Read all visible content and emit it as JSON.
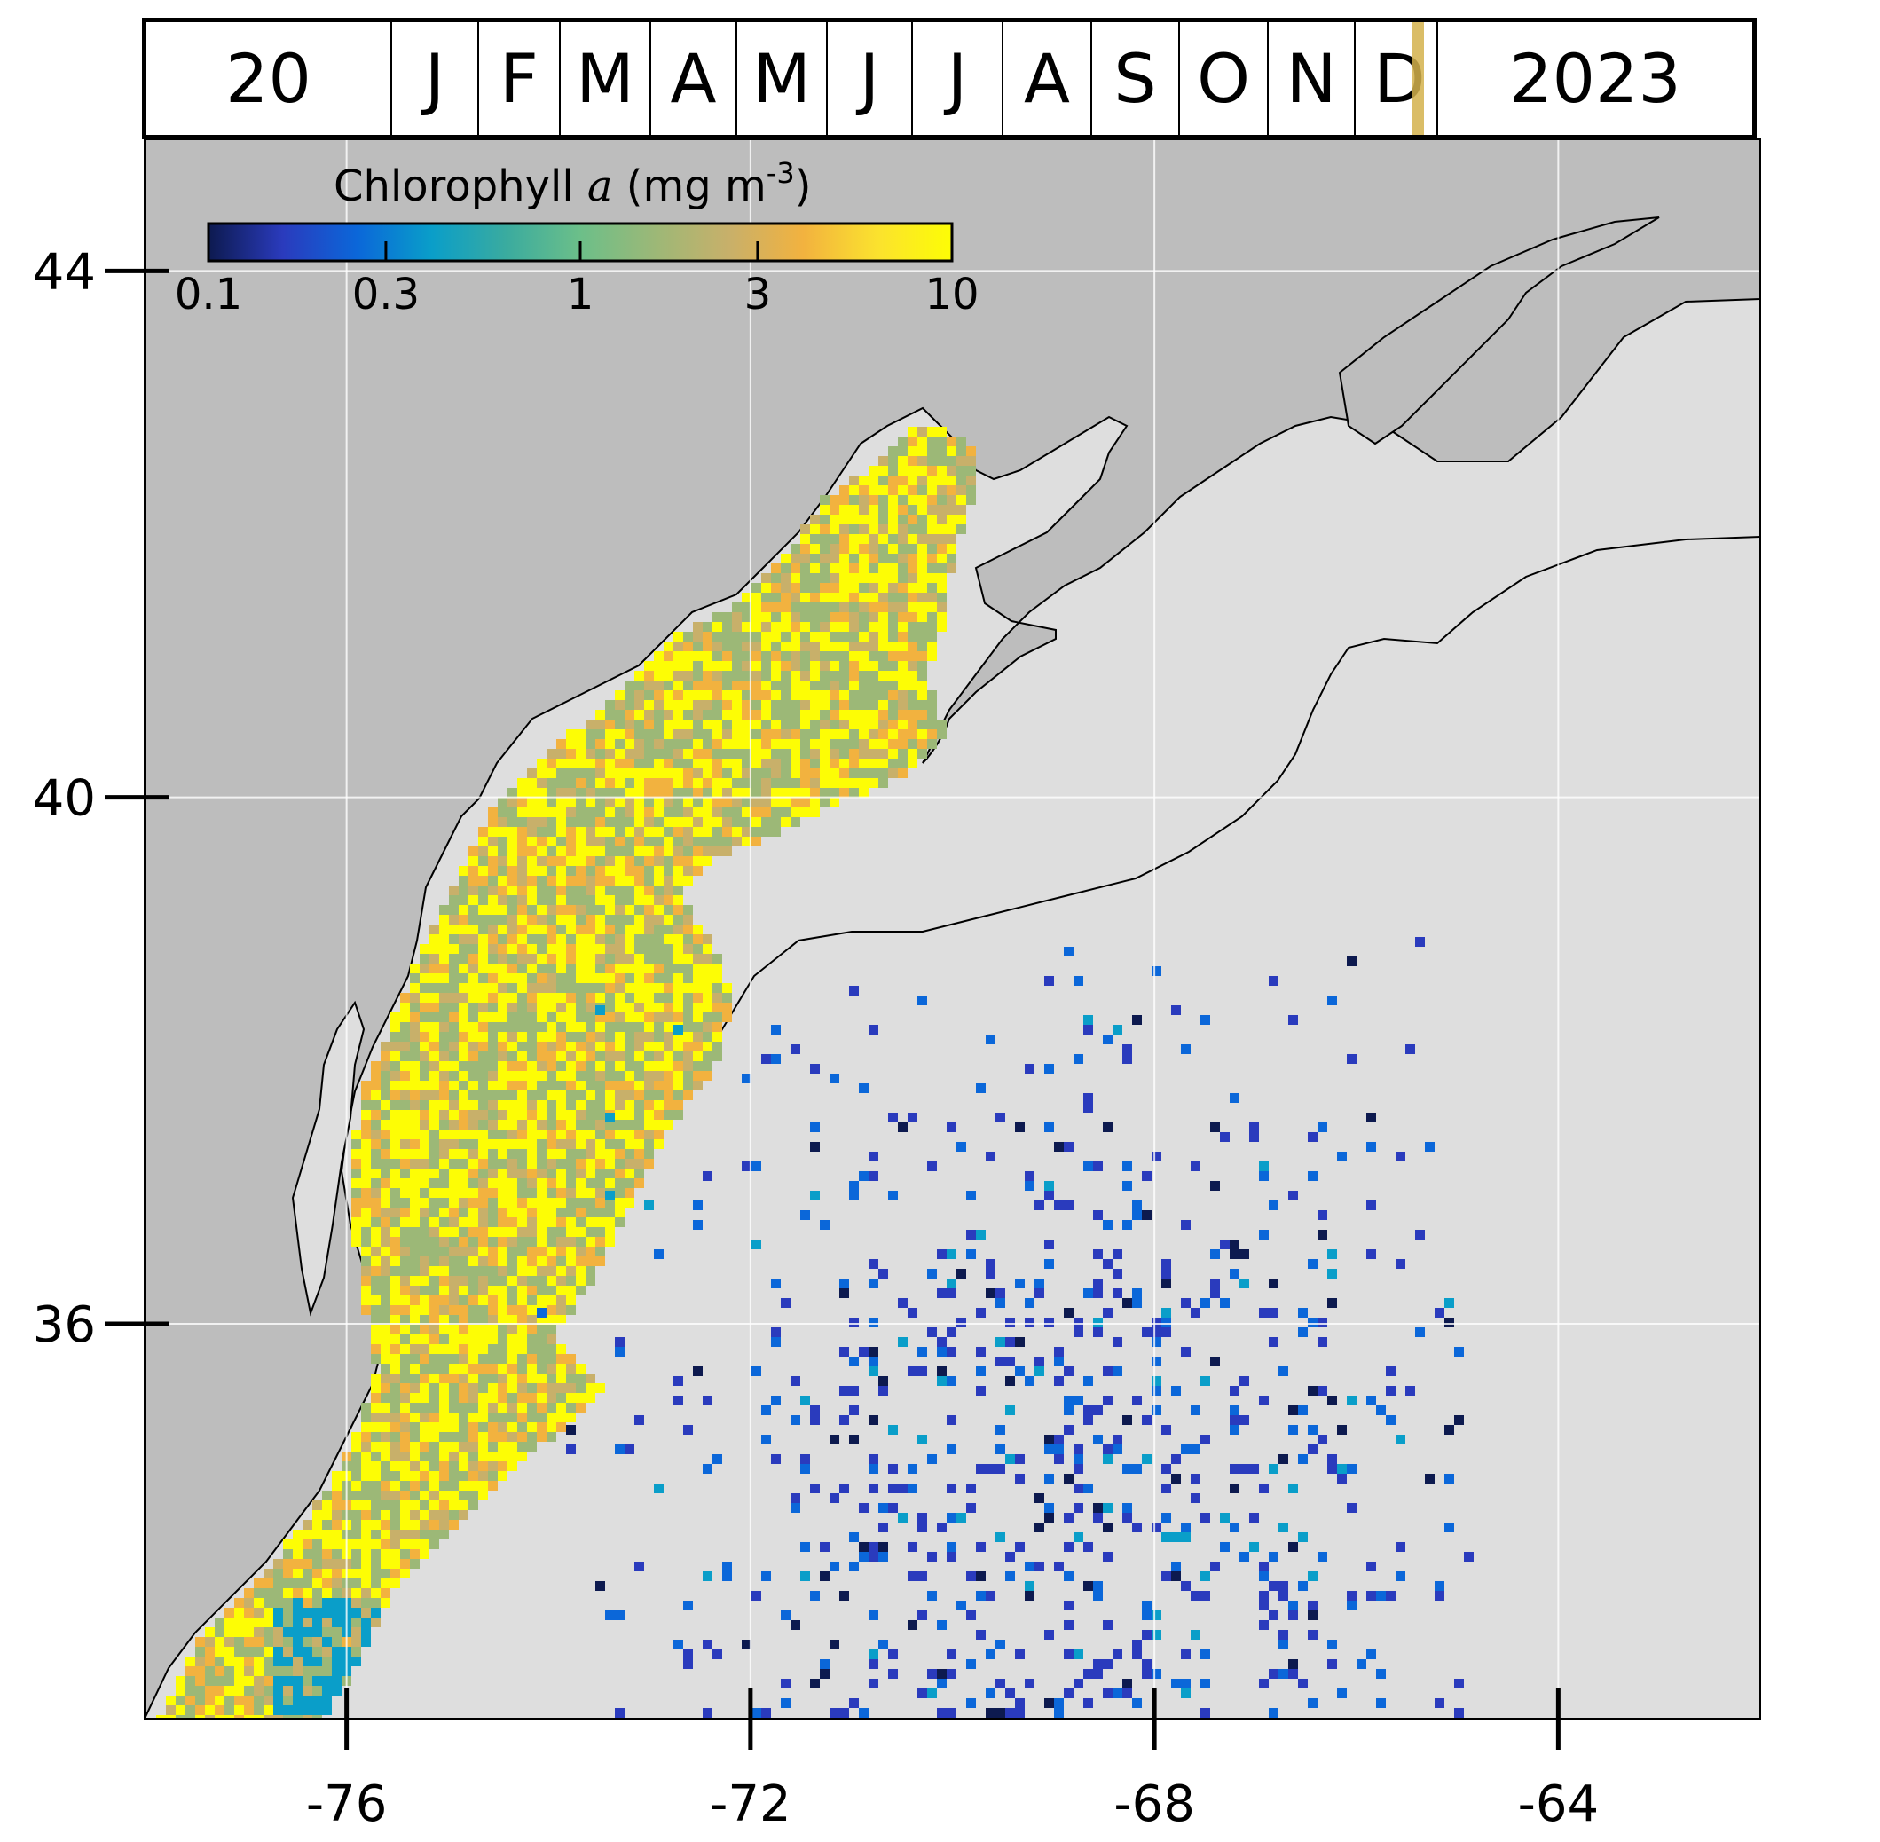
{
  "timeline": {
    "day": "20",
    "months": [
      "J",
      "F",
      "M",
      "A",
      "M",
      "J",
      "J",
      "A",
      "S",
      "O",
      "N",
      "D"
    ],
    "year": "2023",
    "marker_color": "#d4b24c",
    "marker_month_fraction": 0.64
  },
  "colorbar": {
    "title_prefix": "Chlorophyll ",
    "title_italic": "a",
    "title_unit": " (mg m",
    "title_sup": "-3",
    "title_close": ")",
    "ticks": [
      "0.1",
      "0.3",
      "1",
      "3",
      "10"
    ],
    "tick_values": [
      0.1,
      0.3,
      1,
      3,
      10
    ],
    "scale": "log",
    "colors": [
      "#0d1a4f",
      "#2a3bbd",
      "#0b67d9",
      "#0a9ec9",
      "#3aab9f",
      "#6cbf89",
      "#9cb877",
      "#c8b06a",
      "#f2b23f",
      "#fbe22e",
      "#fdfd05"
    ]
  },
  "map": {
    "lon_range": [
      -78,
      -62
    ],
    "lat_range": [
      33,
      45
    ],
    "x_ticks": [
      "-76",
      "-72",
      "-68",
      "-64"
    ],
    "x_tick_values": [
      -76,
      -72,
      -68,
      -64
    ],
    "y_ticks": [
      "44",
      "40",
      "36"
    ],
    "y_tick_values": [
      44,
      40,
      36
    ],
    "land_color": "#bdbdbd",
    "ocean_color": "#dedede",
    "gridlines": true
  }
}
